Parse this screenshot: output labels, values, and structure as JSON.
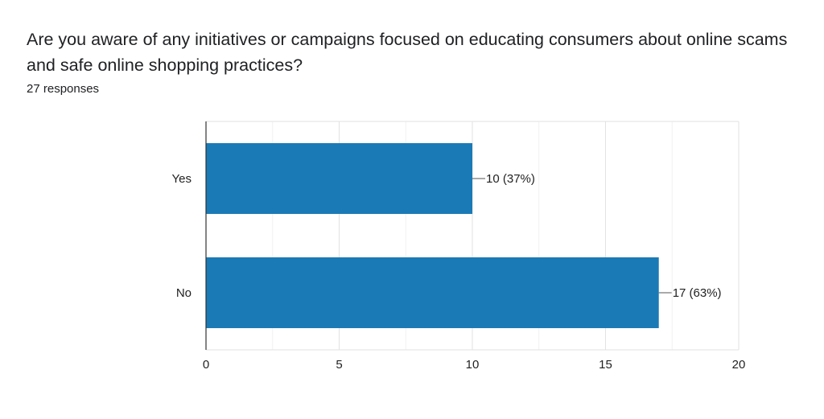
{
  "question": "Are you aware of any initiatives or campaigns focused on educating consumers about online scams and safe online shopping practices?",
  "responses_text": "27 responses",
  "colors": {
    "bar": "#1a7ab5",
    "grid": "#e6e6e6",
    "axis": "#333333"
  },
  "chart_data": {
    "type": "bar",
    "orientation": "horizontal",
    "categories": [
      "Yes",
      "No"
    ],
    "values": [
      10,
      17
    ],
    "data_labels": [
      "10 (37%)",
      "17 (63%)"
    ],
    "title": "",
    "xlabel": "",
    "ylabel": "",
    "xlim": [
      0,
      20
    ],
    "xticks": [
      0,
      5,
      10,
      15,
      20
    ],
    "grid": true
  }
}
